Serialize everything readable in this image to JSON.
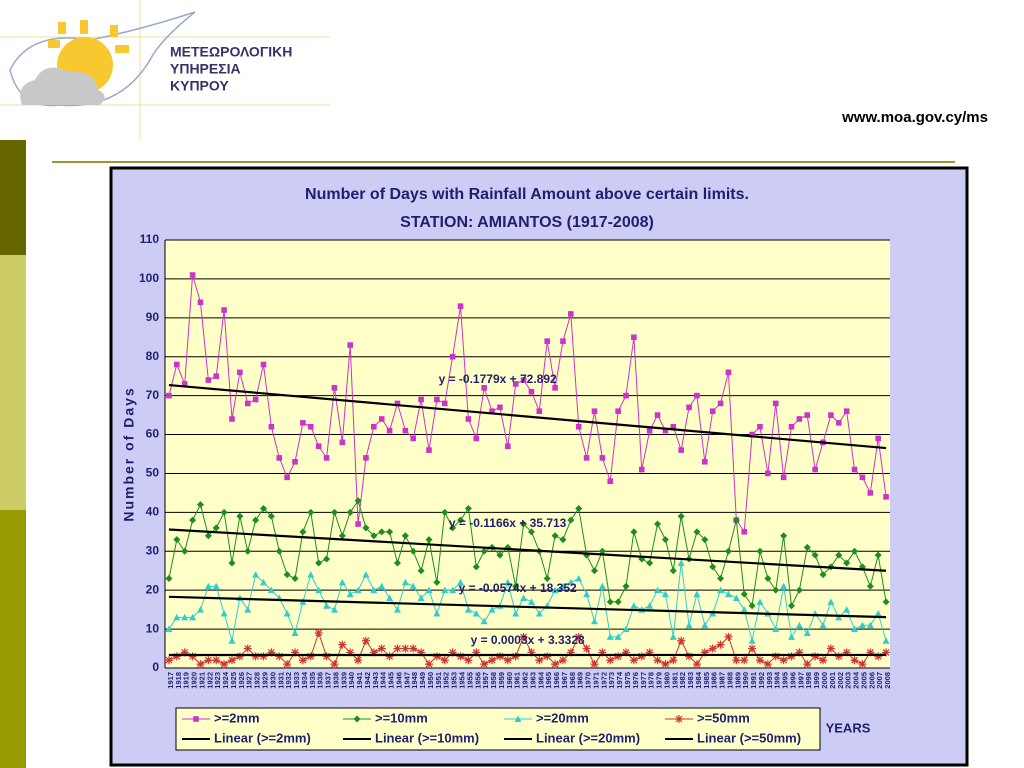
{
  "header": {
    "org_line1": "ΜΕΤΕΩΡΟΛΟΓΙΚΗ",
    "org_line2": "ΥΠΗΡΕΣΙΑ",
    "org_line3": "ΚΥΠΡΟΥ",
    "url": "www.moa.gov.cy/ms"
  },
  "chart_data": {
    "type": "line",
    "title": "Number of Days with Rainfall Amount above certain limits.",
    "subtitle": "STATION: AMIANTOS (1917-2008)",
    "y_label": "Number of Days",
    "x_label": "YEARS",
    "ylim": [
      0,
      110
    ],
    "yticks": [
      0,
      10,
      20,
      30,
      40,
      50,
      60,
      70,
      80,
      90,
      100,
      110
    ],
    "grid": true,
    "categories": [
      "1917",
      "1918",
      "1919",
      "1920",
      "1921",
      "1922",
      "1923",
      "1924",
      "1925",
      "1926",
      "1927",
      "1928",
      "1929",
      "1930",
      "1931",
      "1932",
      "1933",
      "1934",
      "1935",
      "1936",
      "1937",
      "1938",
      "1939",
      "1940",
      "1941",
      "1942",
      "1943",
      "1944",
      "1945",
      "1946",
      "1947",
      "1948",
      "1949",
      "1950",
      "1951",
      "1952",
      "1953",
      "1954",
      "1955",
      "1956",
      "1957",
      "1958",
      "1959",
      "1960",
      "1961",
      "1962",
      "1963",
      "1964",
      "1965",
      "1966",
      "1967",
      "1968",
      "1969",
      "1970",
      "1971",
      "1972",
      "1973",
      "1974",
      "1975",
      "1976",
      "1977",
      "1978",
      "1979",
      "1980",
      "1981",
      "1982",
      "1983",
      "1984",
      "1985",
      "1986",
      "1987",
      "1988",
      "1989",
      "1990",
      "1991",
      "1992",
      "1993",
      "1994",
      "1995",
      "1996",
      "1997",
      "1998",
      "1999",
      "2000",
      "2001",
      "2002",
      "2003",
      "2004",
      "2005",
      "2006",
      "2007",
      "2008"
    ],
    "series": [
      {
        "name": ">=2mm",
        "color": "#cc33cc",
        "marker": "square",
        "values": [
          70,
          78,
          73,
          101,
          94,
          74,
          75,
          92,
          64,
          76,
          68,
          69,
          78,
          62,
          54,
          49,
          53,
          63,
          62,
          57,
          54,
          72,
          58,
          83,
          37,
          54,
          62,
          64,
          61,
          68,
          61,
          59,
          69,
          56,
          69,
          68,
          80,
          93,
          64,
          59,
          72,
          66,
          67,
          57,
          73,
          74,
          71,
          66,
          84,
          72,
          84,
          91,
          62,
          54,
          66,
          54,
          48,
          66,
          70,
          85,
          51,
          61,
          65,
          61,
          62,
          56,
          67,
          70,
          53,
          66,
          68,
          76,
          38,
          35,
          60,
          62,
          50,
          68,
          49,
          62,
          64,
          65,
          51,
          58,
          65,
          63,
          66,
          51,
          49,
          45,
          59,
          44
        ]
      },
      {
        "name": ">=10mm",
        "color": "#1e8c1e",
        "marker": "diamond",
        "values": [
          23,
          33,
          30,
          38,
          42,
          34,
          36,
          40,
          27,
          39,
          30,
          38,
          41,
          39,
          30,
          24,
          23,
          35,
          40,
          27,
          28,
          40,
          34,
          40,
          43,
          36,
          34,
          35,
          35,
          27,
          34,
          30,
          25,
          33,
          22,
          40,
          36,
          38,
          41,
          26,
          30,
          31,
          29,
          31,
          21,
          37,
          35,
          30,
          23,
          34,
          33,
          38,
          41,
          29,
          25,
          30,
          17,
          17,
          21,
          35,
          28,
          27,
          37,
          33,
          25,
          39,
          28,
          35,
          33,
          26,
          23,
          30,
          38,
          19,
          16,
          30,
          23,
          20,
          34,
          16,
          20,
          31,
          29,
          24,
          26,
          29,
          27,
          30,
          26,
          21,
          29,
          17
        ]
      },
      {
        "name": ">=20mm",
        "color": "#33cccc",
        "marker": "triangle",
        "values": [
          10,
          13,
          13,
          13,
          15,
          21,
          21,
          14,
          7,
          18,
          15,
          24,
          22,
          20,
          18,
          14,
          9,
          17,
          24,
          20,
          16,
          15,
          22,
          19,
          20,
          24,
          20,
          21,
          18,
          15,
          22,
          21,
          18,
          20,
          14,
          20,
          20,
          22,
          15,
          14,
          12,
          15,
          16,
          22,
          14,
          18,
          17,
          14,
          16,
          20,
          21,
          22,
          23,
          19,
          12,
          21,
          8,
          8,
          10,
          16,
          15,
          16,
          20,
          19,
          8,
          27,
          11,
          19,
          11,
          14,
          20,
          19,
          18,
          15,
          7,
          17,
          14,
          10,
          21,
          8,
          11,
          9,
          14,
          11,
          17,
          13,
          15,
          10,
          11,
          11,
          14,
          7
        ]
      },
      {
        "name": ">=50mm",
        "color": "#cc3333",
        "marker": "star",
        "values": [
          2,
          3,
          4,
          3,
          1,
          2,
          2,
          1,
          2,
          3,
          5,
          3,
          3,
          4,
          3,
          1,
          4,
          2,
          3,
          9,
          3,
          1,
          6,
          4,
          2,
          7,
          4,
          5,
          3,
          5,
          5,
          5,
          4,
          1,
          3,
          2,
          4,
          3,
          2,
          4,
          1,
          2,
          3,
          2,
          3,
          8,
          4,
          2,
          3,
          1,
          2,
          4,
          8,
          5,
          1,
          4,
          2,
          3,
          4,
          2,
          3,
          4,
          2,
          1,
          2,
          7,
          3,
          1,
          4,
          5,
          6,
          8,
          2,
          2,
          5,
          2,
          1,
          3,
          2,
          3,
          4,
          1,
          3,
          2,
          5,
          3,
          4,
          2,
          1,
          4,
          3,
          4
        ]
      }
    ],
    "trendlines": [
      {
        "name": "Linear (>=2mm)",
        "color": "#000000",
        "equation": "y = -0.1779x + 72.892",
        "slope": -0.1779,
        "intercept": 72.892
      },
      {
        "name": "Linear (>=10mm)",
        "color": "#000000",
        "equation": "y = -0.1166x + 35.713",
        "slope": -0.1166,
        "intercept": 35.713
      },
      {
        "name": "Linear (>=20mm)",
        "color": "#000000",
        "equation": "y = -0.0574x + 18.352",
        "slope": -0.0574,
        "intercept": 18.352
      },
      {
        "name": "Linear (>=50mm)",
        "color": "#000000",
        "equation": "y = 0.0003x + 3.3328",
        "slope": 0.0003,
        "intercept": 3.3328
      }
    ]
  }
}
